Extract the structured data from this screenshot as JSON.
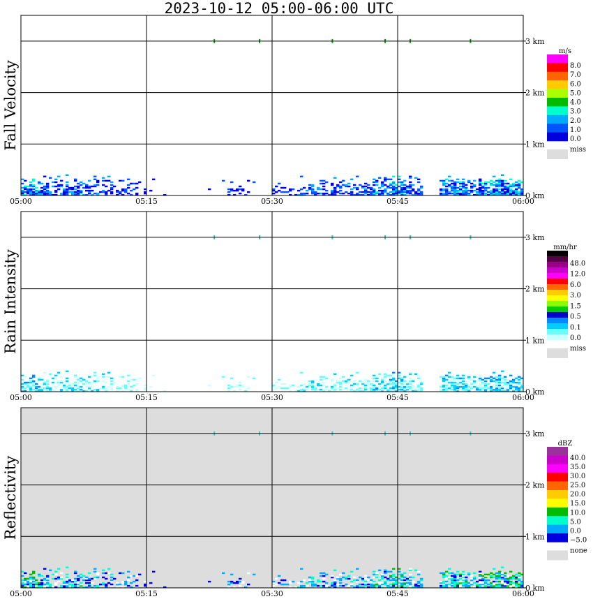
{
  "title": "2023-10-12   05:00-06:00 UTC",
  "chart_data": [
    {
      "type": "heatmap",
      "ylabel": "Fall Velocity",
      "x_ticks": [
        "05:00",
        "05:15",
        "05:30",
        "05:45",
        "06:00"
      ],
      "y_ticks": [
        "0 km",
        "1 km",
        "2 km",
        "3 km"
      ],
      "xlim": [
        "05:00",
        "06:00"
      ],
      "ylim": [
        0,
        3.5
      ],
      "background": "#ffffff",
      "legend": {
        "unit": "m/s",
        "labels": [
          "8.0",
          "7.0",
          "6.0",
          "5.0",
          "4.0",
          "3.0",
          "2.0",
          "1.0",
          "0.0"
        ],
        "colors": [
          "#ff00ff",
          "#ff0000",
          "#ff6600",
          "#ffcc00",
          "#aaff00",
          "#00bb00",
          "#00ffcc",
          "#00aaff",
          "#0055ff",
          "#0000dd"
        ],
        "miss_label": "miss",
        "miss_color": "#dddddd"
      }
    },
    {
      "type": "heatmap",
      "ylabel": "Rain Intensity",
      "x_ticks": [
        "05:00",
        "05:15",
        "05:30",
        "05:45",
        "06:00"
      ],
      "y_ticks": [
        "0 km",
        "1 km",
        "2 km",
        "3 km"
      ],
      "xlim": [
        "05:00",
        "06:00"
      ],
      "ylim": [
        0,
        3.5
      ],
      "background": "#ffffff",
      "legend": {
        "unit": "mm/hr",
        "labels": [
          "48.0",
          "12.0",
          "6.0",
          "3.0",
          "1.5",
          "0.5",
          "0.1",
          "0.0"
        ],
        "colors": [
          "#000000",
          "#550044",
          "#990088",
          "#cc00cc",
          "#ff00ff",
          "#ff0000",
          "#ff6600",
          "#ffcc00",
          "#ffff00",
          "#88ff00",
          "#00cc00",
          "#0000cc",
          "#0088ff",
          "#00ccff",
          "#66ffff",
          "#ccffff"
        ],
        "miss_label": "miss",
        "miss_color": "#dddddd"
      }
    },
    {
      "type": "heatmap",
      "ylabel": "Reflectivity",
      "x_ticks": [
        "05:00",
        "05:15",
        "05:30",
        "05:45",
        "06:00"
      ],
      "y_ticks": [
        "0 km",
        "1 km",
        "2 km",
        "3 km"
      ],
      "xlim": [
        "05:00",
        "06:00"
      ],
      "ylim": [
        0,
        3.5
      ],
      "background": "#dddddd",
      "legend": {
        "unit": "dBZ",
        "labels": [
          "40.0",
          "35.0",
          "30.0",
          "25.0",
          "20.0",
          "15.0",
          "10.0",
          "5.0",
          "0.0",
          "−5.0"
        ],
        "colors": [
          "#993399",
          "#cc00cc",
          "#ff00ff",
          "#ff0000",
          "#ff6600",
          "#ffcc00",
          "#ffff00",
          "#00bb00",
          "#00ffcc",
          "#00aaff",
          "#0000dd"
        ],
        "miss_label": "none",
        "miss_color": "#dddddd"
      }
    }
  ]
}
